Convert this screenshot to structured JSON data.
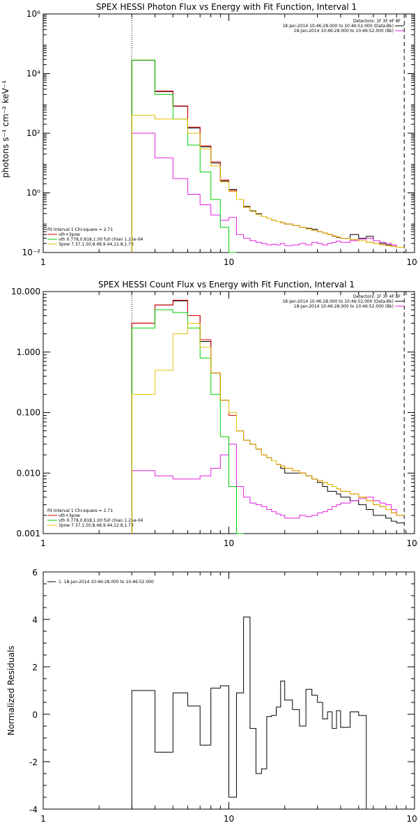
{
  "chart_data": [
    {
      "type": "line",
      "title": "SPEX HESSI Photon Flux vs Energy with Fit Function, Interval 1",
      "ylabel": "photons s⁻¹ cm⁻² keV⁻¹",
      "xlabel": "",
      "xscale": "log",
      "yscale": "log",
      "xlim": [
        1,
        100
      ],
      "ylim": [
        0.01,
        1000000
      ],
      "xticks": [
        "1",
        "10",
        "100"
      ],
      "yticks": [
        "10⁻²",
        "10⁰",
        "10²",
        "10⁴",
        "10⁶"
      ],
      "vlines": [
        {
          "x": 3,
          "style": "dotted"
        },
        {
          "x": 88,
          "style": "dashed"
        }
      ],
      "legend_right": [
        "Detectors: 1F 3F 4F 8F",
        "18-Jan-2014 10:46:28.000 to 10:46:52.000 (Data-Bk)",
        "18-Jan-2014 10:46:28.000 to 10:46:52.000 (Bk)"
      ],
      "legend_left": [
        "Fit Interval 1    Chi-square = 2.71",
        "vth+3pow",
        "vth 0.778,0.818,1.00  full chian 1.25e-04",
        "3pow 7.37,1.50,8.48,9.44,12.8,1.73"
      ],
      "bin_edges": [
        3,
        3.5,
        4,
        4.5,
        5,
        5.5,
        6,
        6.5,
        7,
        7.5,
        8,
        8.5,
        9,
        9.5,
        10,
        11,
        12,
        13,
        14,
        15,
        16,
        17,
        18,
        19,
        20,
        22,
        24,
        26,
        28,
        30,
        32,
        34,
        36,
        38,
        40,
        45,
        50,
        55,
        60,
        65,
        70,
        75,
        80,
        88
      ],
      "series": [
        {
          "name": "Data-Bk",
          "color": "#000000",
          "values": [
            28000,
            28000,
            2500,
            2500,
            800,
            800,
            150,
            150,
            35,
            35,
            10,
            10,
            2.5,
            2.5,
            1.3,
            0.6,
            0.35,
            0.25,
            0.2,
            0.16,
            0.14,
            0.12,
            0.11,
            0.1,
            0.09,
            0.08,
            0.07,
            0.065,
            0.06,
            0.05,
            0.045,
            0.04,
            0.035,
            0.032,
            0.03,
            0.04,
            0.03,
            0.035,
            0.025,
            0.02,
            0.018,
            0.016,
            0.015
          ]
        },
        {
          "name": "Bk",
          "color": "#e020e0",
          "values": [
            100,
            100,
            15,
            15,
            3,
            3,
            0.9,
            0.9,
            0.4,
            0.4,
            0.18,
            0.18,
            0.12,
            0.12,
            0.15,
            0.04,
            0.03,
            0.025,
            0.022,
            0.02,
            0.018,
            0.019,
            0.018,
            0.02,
            0.017,
            0.018,
            0.02,
            0.018,
            0.022,
            0.02,
            0.018,
            0.02,
            0.022,
            0.024,
            0.022,
            0.025,
            0.028,
            0.03,
            0.025,
            0.022,
            0.02,
            0.018,
            0.015
          ]
        },
        {
          "name": "vth+3pow",
          "color": "#e00000",
          "values": [
            28000,
            28000,
            2600,
            2600,
            820,
            820,
            160,
            160,
            38,
            38,
            11,
            11,
            2.7,
            2.7,
            1.2,
            0.6,
            0.33,
            0.24,
            0.19,
            0.16,
            0.14,
            0.12,
            0.11,
            0.1,
            0.09,
            0.08,
            0.07,
            0.062,
            0.055,
            0.05,
            0.045,
            0.04,
            0.036,
            0.033,
            0.03,
            0.027,
            0.025,
            0.022,
            0.02,
            0.018,
            0.017,
            0.016,
            0.015
          ]
        },
        {
          "name": "vth",
          "color": "#00d000",
          "values": [
            28000,
            28000,
            2000,
            2000,
            300,
            300,
            40,
            40,
            5,
            5,
            0.6,
            0.6,
            0.07,
            0.07,
            0.01
          ]
        },
        {
          "name": "3pow",
          "color": "#e0c000",
          "values": [
            400,
            400,
            300,
            300,
            300,
            300,
            100,
            100,
            30,
            30,
            8,
            8,
            2.3,
            2.3,
            1.1,
            0.6,
            0.33,
            0.24,
            0.19,
            0.16,
            0.14,
            0.12,
            0.11,
            0.1,
            0.09,
            0.08,
            0.07,
            0.062,
            0.055,
            0.05,
            0.045,
            0.04,
            0.036,
            0.033,
            0.03,
            0.027,
            0.025,
            0.022,
            0.02,
            0.018,
            0.017,
            0.016,
            0.015
          ]
        }
      ]
    },
    {
      "type": "line",
      "title": "SPEX HESSI Count Flux vs Energy with Fit Function, Interval 1",
      "ylabel": "",
      "xlabel": "",
      "xscale": "log",
      "yscale": "log",
      "xlim": [
        1,
        100
      ],
      "ylim": [
        0.001,
        10
      ],
      "xticks": [
        "1",
        "10",
        "100"
      ],
      "yticks": [
        "0.001",
        "0.010",
        "0.100",
        "1.000",
        "10.000"
      ],
      "vlines": [
        {
          "x": 3,
          "style": "dotted"
        },
        {
          "x": 88,
          "style": "dashed"
        }
      ],
      "legend_right": [
        "Detectors: 1F 3F 4F 8F",
        "18-Jan-2014 10:46:28.000 to 10:46:52.000 (Data-Bk)",
        "18-Jan-2014 10:46:28.000 to 10:46:52.000 (Bk)"
      ],
      "legend_left": [
        "Fit Interval 1    Chi-square = 2.71",
        "vth+3pow",
        "vth 0.778,0.818,1.00  full chian 1.25e-04",
        "3pow 7.37,1.50,8.48,9.44,12.8,1.73"
      ],
      "bin_edges": [
        3,
        3.5,
        4,
        4.5,
        5,
        5.5,
        6,
        6.5,
        7,
        7.5,
        8,
        8.5,
        9,
        9.5,
        10,
        11,
        12,
        13,
        14,
        15,
        16,
        17,
        18,
        19,
        20,
        22,
        24,
        26,
        28,
        30,
        32,
        34,
        36,
        38,
        40,
        45,
        50,
        55,
        60,
        65,
        70,
        75,
        80,
        88
      ],
      "series": [
        {
          "name": "Data-Bk",
          "color": "#000000",
          "values": [
            3,
            3,
            6,
            6,
            7,
            7,
            4,
            4,
            1.5,
            1.5,
            0.45,
            0.45,
            0.16,
            0.16,
            0.1,
            0.05,
            0.035,
            0.03,
            0.025,
            0.02,
            0.018,
            0.016,
            0.014,
            0.012,
            0.01,
            0.01,
            0.01,
            0.009,
            0.008,
            0.007,
            0.006,
            0.005,
            0.005,
            0.0045,
            0.004,
            0.0035,
            0.003,
            0.0025,
            0.002,
            0.002,
            0.0018,
            0.0016,
            0.0015
          ]
        },
        {
          "name": "Bk",
          "color": "#e020e0",
          "values": [
            0.011,
            0.011,
            0.009,
            0.009,
            0.008,
            0.008,
            0.008,
            0.008,
            0.009,
            0.009,
            0.012,
            0.012,
            0.02,
            0.02,
            0.03,
            0.006,
            0.004,
            0.0032,
            0.003,
            0.0028,
            0.0025,
            0.0023,
            0.0021,
            0.002,
            0.0018,
            0.0018,
            0.002,
            0.0019,
            0.002,
            0.0022,
            0.0023,
            0.0025,
            0.0028,
            0.003,
            0.0032,
            0.0035,
            0.0038,
            0.004,
            0.0035,
            0.0032,
            0.003,
            0.0025,
            0.002
          ]
        },
        {
          "name": "vth+3pow",
          "color": "#e00000",
          "values": [
            3,
            3,
            6,
            6,
            7.2,
            7.2,
            4,
            4,
            1.6,
            1.6,
            0.45,
            0.45,
            0.16,
            0.16,
            0.09,
            0.05,
            0.035,
            0.03,
            0.025,
            0.02,
            0.018,
            0.016,
            0.014,
            0.013,
            0.012,
            0.011,
            0.01,
            0.009,
            0.008,
            0.0075,
            0.007,
            0.0065,
            0.006,
            0.0055,
            0.005,
            0.0045,
            0.004,
            0.0035,
            0.003,
            0.0028,
            0.0025,
            0.0022,
            0.002
          ]
        },
        {
          "name": "vth",
          "color": "#00d000",
          "values": [
            2.5,
            2.5,
            5,
            5,
            4.5,
            4.5,
            2.5,
            2.5,
            0.8,
            0.8,
            0.2,
            0.2,
            0.04,
            0.04,
            0.006,
            0.001
          ]
        },
        {
          "name": "3pow",
          "color": "#e0c000",
          "values": [
            0.2,
            0.2,
            0.5,
            0.5,
            2,
            2,
            3,
            3,
            1.2,
            1.2,
            0.45,
            0.45,
            0.16,
            0.16,
            0.1,
            0.05,
            0.035,
            0.03,
            0.025,
            0.02,
            0.018,
            0.016,
            0.014,
            0.013,
            0.012,
            0.011,
            0.01,
            0.009,
            0.008,
            0.0075,
            0.007,
            0.0065,
            0.006,
            0.0055,
            0.005,
            0.0045,
            0.004,
            0.0035,
            0.003,
            0.0028,
            0.0025,
            0.0022,
            0.002
          ]
        }
      ]
    },
    {
      "type": "line",
      "title": "",
      "ylabel": "Normalized Residuals",
      "xlabel": "",
      "xscale": "log",
      "yscale": "linear",
      "xlim": [
        1,
        100
      ],
      "ylim": [
        -4,
        6
      ],
      "xticks": [
        "1",
        "10",
        "100"
      ],
      "yticks": [
        "-4",
        "-2",
        "0",
        "2",
        "4",
        "6"
      ],
      "legend": "1. 18-Jan-2014 10:46:28.000 to 10:46:52.000",
      "bin_edges": [
        3,
        3.5,
        4,
        4.5,
        5,
        5.5,
        6,
        6.5,
        7,
        7.5,
        8,
        8.5,
        9,
        9.5,
        10,
        11,
        12,
        13,
        14,
        15,
        16,
        17,
        18,
        19,
        20,
        22,
        24,
        26,
        28,
        30,
        32,
        34,
        36,
        38,
        40,
        45,
        50,
        55,
        60,
        65,
        70,
        75,
        80,
        88
      ],
      "series": [
        {
          "name": "1. 18-Jan-2014 10:46:28.000 to 10:46:52.000",
          "color": "#000000",
          "values": [
            1,
            1,
            -1.6,
            -1.6,
            0.9,
            0.9,
            0.35,
            0.35,
            -1.3,
            -1.3,
            1.1,
            1.1,
            1.2,
            1.2,
            -3.5,
            0.9,
            4.1,
            -0.6,
            -2.5,
            -2.3,
            -0.1,
            -0.05,
            0.3,
            1.4,
            0.6,
            0.2,
            -0.5,
            1.05,
            0.8,
            0.5,
            -0.2,
            0.1,
            -0.6,
            0.15,
            -0.55,
            0.1,
            -0.05,
            -4,
            -4,
            -4,
            -4,
            -4,
            -4
          ]
        }
      ]
    }
  ]
}
